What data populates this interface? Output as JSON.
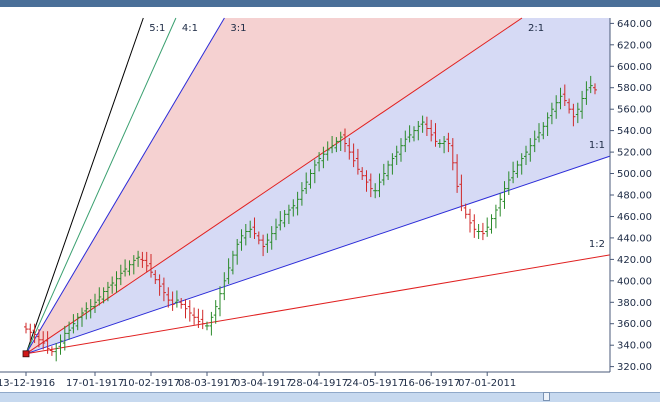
{
  "window": {
    "colors": {
      "frame": "#4a6f98",
      "scroll_band": "#c7d9ef"
    }
  },
  "chart_data": {
    "type": "ohlc",
    "title": "",
    "xlabel": "",
    "ylabel": "",
    "ylim": [
      315,
      645
    ],
    "y_ticks": [
      320,
      340,
      360,
      380,
      400,
      420,
      440,
      460,
      480,
      500,
      520,
      540,
      560,
      580,
      600,
      620,
      640
    ],
    "x_tick_labels": [
      "13-12-1916",
      "17-01-1917",
      "10-02-1917",
      "08-03-1917",
      "03-04-1917",
      "28-04-1917",
      "24-05-1917",
      "16-06-1917",
      "07-01-2011"
    ],
    "x_tick_bar_index": [
      0,
      16,
      29,
      42,
      55,
      68,
      81,
      94,
      107
    ],
    "grid": false,
    "up_color": "#2a8a2a",
    "down_color": "#d02828",
    "closes": [
      355,
      352,
      350,
      345,
      342,
      337,
      334,
      337,
      344,
      351,
      354,
      360,
      366,
      370,
      374,
      376,
      380,
      385,
      390,
      394,
      398,
      402,
      407,
      411,
      415,
      419,
      422,
      419,
      414,
      408,
      401,
      395,
      389,
      382,
      378,
      382,
      378,
      374,
      370,
      366,
      362,
      360,
      358,
      366,
      376,
      388,
      400,
      412,
      424,
      434,
      442,
      446,
      448,
      444,
      438,
      432,
      438,
      444,
      450,
      456,
      462,
      466,
      470,
      476,
      484,
      492,
      500,
      508,
      514,
      518,
      522,
      526,
      530,
      534,
      528,
      520,
      512,
      504,
      498,
      492,
      486,
      484,
      492,
      500,
      508,
      514,
      520,
      526,
      532,
      536,
      540,
      544,
      548,
      542,
      536,
      530,
      528,
      530,
      528,
      510,
      488,
      470,
      462,
      454,
      448,
      446,
      444,
      450,
      458,
      466,
      476,
      486,
      494,
      502,
      508,
      514,
      520,
      526,
      532,
      538,
      544,
      552,
      560,
      566,
      572,
      568,
      560,
      553,
      560,
      570,
      578,
      582,
      578
    ],
    "fan": {
      "origin": {
        "bar": 0,
        "price": 332
      },
      "lines": [
        {
          "label": "5:1",
          "slope_per_bar": 11.5,
          "color": "#000000"
        },
        {
          "label": "4:1",
          "slope_per_bar": 9.0,
          "color": "#3aa070"
        },
        {
          "label": "3:1",
          "slope_per_bar": 6.8,
          "color": "#2c2cd8"
        },
        {
          "label": "2:1",
          "slope_per_bar": 2.72,
          "color": "#e02020"
        },
        {
          "label": "1:1",
          "slope_per_bar": 1.36,
          "color": "#2c2cd8"
        },
        {
          "label": "1:2",
          "slope_per_bar": 0.68,
          "color": "#e02020"
        }
      ],
      "fill_upper": "#f3c9c9",
      "fill_lower": "#cfd3f3"
    }
  }
}
